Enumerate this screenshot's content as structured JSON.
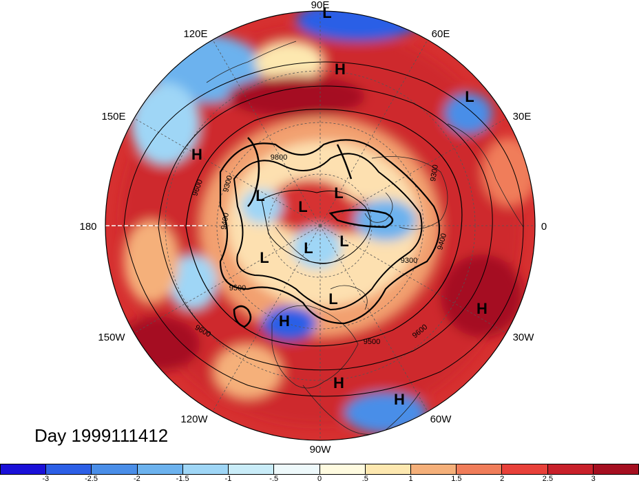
{
  "map": {
    "lon_labels": {
      "n": "90E",
      "ne": "60E",
      "ene": "30E",
      "e": "0",
      "ese": "30W",
      "se": "60W",
      "s": "90W",
      "sw": "120W",
      "wsw": "150W",
      "w": "180",
      "wnw": "150E",
      "nw": "120E"
    },
    "pressure_centers": [
      {
        "label": "L",
        "id": "top"
      },
      {
        "label": "H",
        "id": "siberia"
      },
      {
        "label": "L",
        "id": "scand"
      },
      {
        "label": "H",
        "id": "pacific-w"
      },
      {
        "label": "L",
        "id": "c1"
      },
      {
        "label": "L",
        "id": "c2"
      },
      {
        "label": "L",
        "id": "c3"
      },
      {
        "label": "L",
        "id": "c4"
      },
      {
        "label": "L",
        "id": "c5"
      },
      {
        "label": "L",
        "id": "c6"
      },
      {
        "label": "L",
        "id": "c7"
      },
      {
        "label": "H",
        "id": "na"
      },
      {
        "label": "H",
        "id": "atl"
      },
      {
        "label": "H",
        "id": "carib1"
      },
      {
        "label": "H",
        "id": "carib2"
      }
    ],
    "contour_labels": [
      "9800",
      "9300",
      "9600",
      "9400",
      "9500",
      "9300",
      "9400",
      "9300",
      "9600",
      "9500",
      "9600"
    ]
  },
  "day_label": "Day 1999111412",
  "colorbar": {
    "colors": [
      "#1a10d8",
      "#2c5fe6",
      "#4a8ee8",
      "#6cb2ee",
      "#9fd6f6",
      "#c9ecf8",
      "#eef9fb",
      "#fffbe0",
      "#fde8b0",
      "#f5b07a",
      "#f07d5a",
      "#e8413a",
      "#c8202a",
      "#a50f20"
    ],
    "ticks": [
      "-3",
      "-2.5",
      "-2",
      "-1.5",
      "-1",
      "-.5",
      "0",
      ".5",
      "1",
      "1.5",
      "2",
      "2.5",
      "3"
    ]
  }
}
